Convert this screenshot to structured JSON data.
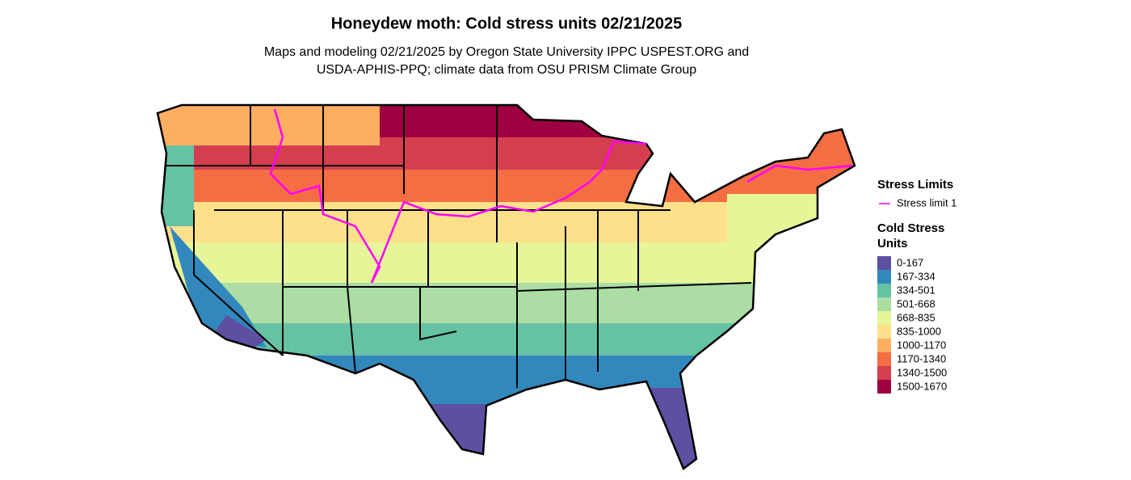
{
  "title": "Honeydew moth: Cold stress units 02/21/2025",
  "subtitle": [
    "Maps and modeling 02/21/2025 by Oregon State University IPPC USPEST.ORG and",
    "USDA-APHIS-PPQ; climate data from OSU PRISM Climate Group"
  ],
  "legend": {
    "limits_title": "Stress Limits",
    "limits": [
      {
        "label": "Stress limit 1",
        "color": "#ff00ff"
      }
    ],
    "units_title": [
      "Cold Stress",
      "Units"
    ],
    "classes": [
      {
        "label": "0-167",
        "color": "#5e4fa2"
      },
      {
        "label": "167-334",
        "color": "#3288bd"
      },
      {
        "label": "334-501",
        "color": "#66c2a5"
      },
      {
        "label": "501-668",
        "color": "#abdda4"
      },
      {
        "label": "668-835",
        "color": "#e6f598"
      },
      {
        "label": "835-1000",
        "color": "#fee08b"
      },
      {
        "label": "1000-1170",
        "color": "#fdae61"
      },
      {
        "label": "1170-1340",
        "color": "#f46d43"
      },
      {
        "label": "1340-1500",
        "color": "#d53e4f"
      },
      {
        "label": "1500-1670",
        "color": "#9e0142"
      }
    ]
  }
}
